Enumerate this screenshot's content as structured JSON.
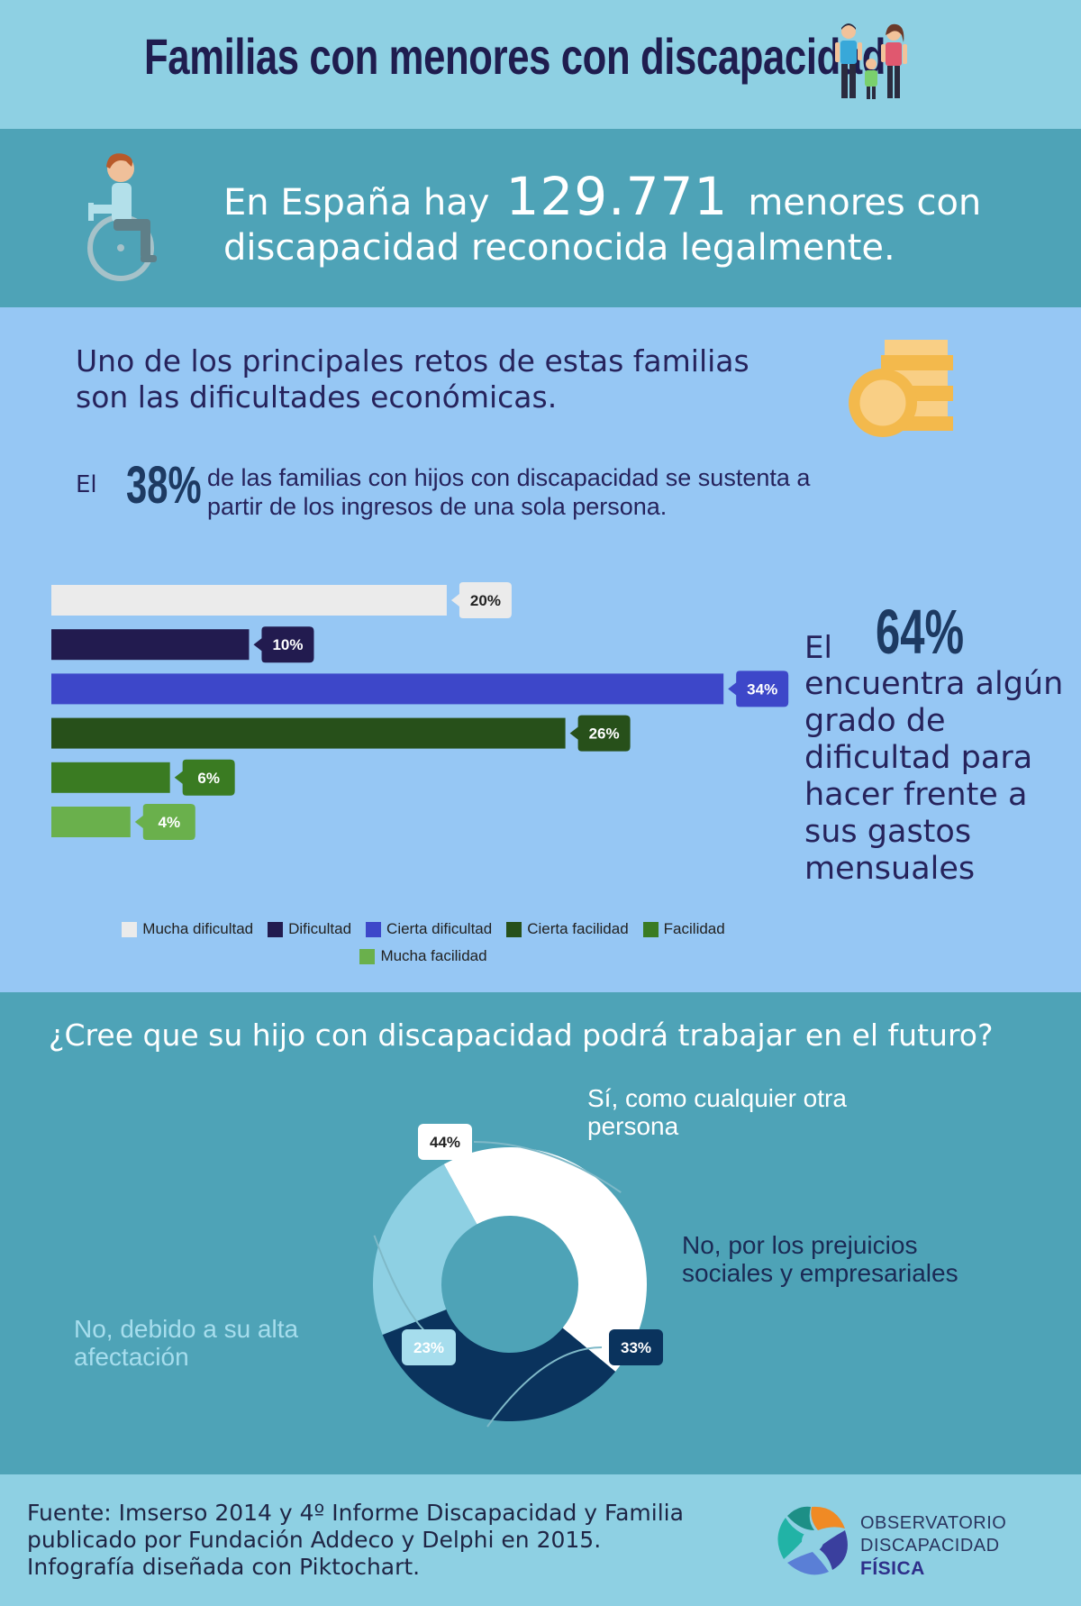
{
  "header": {
    "title": "Familias con menores con discapacidad"
  },
  "stat": {
    "prefix": "En España hay",
    "number": "129.771",
    "suffix_line1": "menores con",
    "suffix_line2": "discapacidad reconocida legalmente."
  },
  "economic": {
    "challenge_line1": "Uno de los principales retos de estas familias",
    "challenge_line2": "son las dificultades económicas.",
    "el": "El",
    "pct38": "38%",
    "text38_line1": "de las familias con hijos con discapacidad se sustenta a",
    "text38_line2": "partir de los ingresos de una sola persona.",
    "side_el": "El",
    "side_pct": "64%",
    "side_text": "encuentra algún grado de dificultad para hacer frente a sus gastos mensuales"
  },
  "work": {
    "question": "¿Cree que su hijo con discapacidad podrá trabajar en el futuro?"
  },
  "footer": {
    "line1": "Fuente: Imserso 2014 y 4º Informe Discapacidad y Familia",
    "line2": "publicado por Fundación Addeco y Delphi en 2015.",
    "line3": "Infografía diseñada con Piktochart.",
    "logo_line1": "OBSERVATORIO",
    "logo_line2": "DISCAPACIDAD",
    "logo_line3": "FÍSICA"
  },
  "chart_data": [
    {
      "type": "bar",
      "orientation": "horizontal",
      "categories": [
        "Mucha dificultad",
        "Dificultad",
        "Cierta dificultad",
        "Cierta facilidad",
        "Facilidad",
        "Mucha facilidad"
      ],
      "values": [
        20,
        10,
        34,
        26,
        6,
        4
      ],
      "labels": [
        "20%",
        "10%",
        "34%",
        "26%",
        "6%",
        "4%"
      ],
      "colors": [
        "#ebebeb",
        "#221b4f",
        "#3d47c9",
        "#27501a",
        "#3a7b22",
        "#6ab04c"
      ],
      "label_text_colors": [
        "#222222",
        "#ffffff",
        "#ffffff",
        "#ffffff",
        "#ffffff",
        "#ffffff"
      ],
      "legend": "bottom",
      "xlim": [
        0,
        37.5
      ]
    },
    {
      "type": "pie",
      "donut": true,
      "categories": [
        "Sí, como cualquier otra persona",
        "No, por los prejuicios sociales y empresariales",
        "No, debido a su alta afectación"
      ],
      "values": [
        44,
        33,
        23
      ],
      "labels": [
        "44%",
        "33%",
        "23%"
      ],
      "colors": [
        "#ffffff",
        "#0a335d",
        "#8ed0e3"
      ],
      "category_label_colors": [
        "#ffffff",
        "#1b2a55",
        "#a6dded"
      ],
      "legend": "none"
    }
  ]
}
